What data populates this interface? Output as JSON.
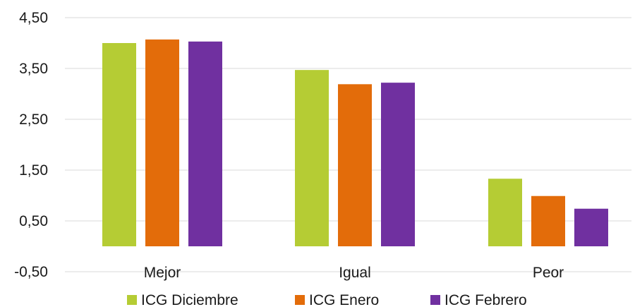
{
  "chart_data": {
    "type": "bar",
    "categories": [
      "Mejor",
      "Igual",
      "Peor"
    ],
    "series": [
      {
        "name": "ICG Diciembre",
        "color": "#b5cc34",
        "values": [
          4.0,
          3.47,
          1.33
        ]
      },
      {
        "name": "ICG Enero",
        "color": "#e36c0a",
        "values": [
          4.07,
          3.19,
          0.99
        ]
      },
      {
        "name": "ICG Febrero",
        "color": "#7030a0",
        "values": [
          4.03,
          3.22,
          0.74
        ]
      }
    ],
    "yticks": [
      "4,50",
      "3,50",
      "2,50",
      "1,50",
      "0,50",
      "-0,50"
    ],
    "ytick_values": [
      4.5,
      3.5,
      2.5,
      1.5,
      0.5,
      -0.5
    ],
    "ylim": [
      -0.5,
      4.5
    ],
    "baseline": 0,
    "grid": true,
    "legend": "bottom"
  }
}
